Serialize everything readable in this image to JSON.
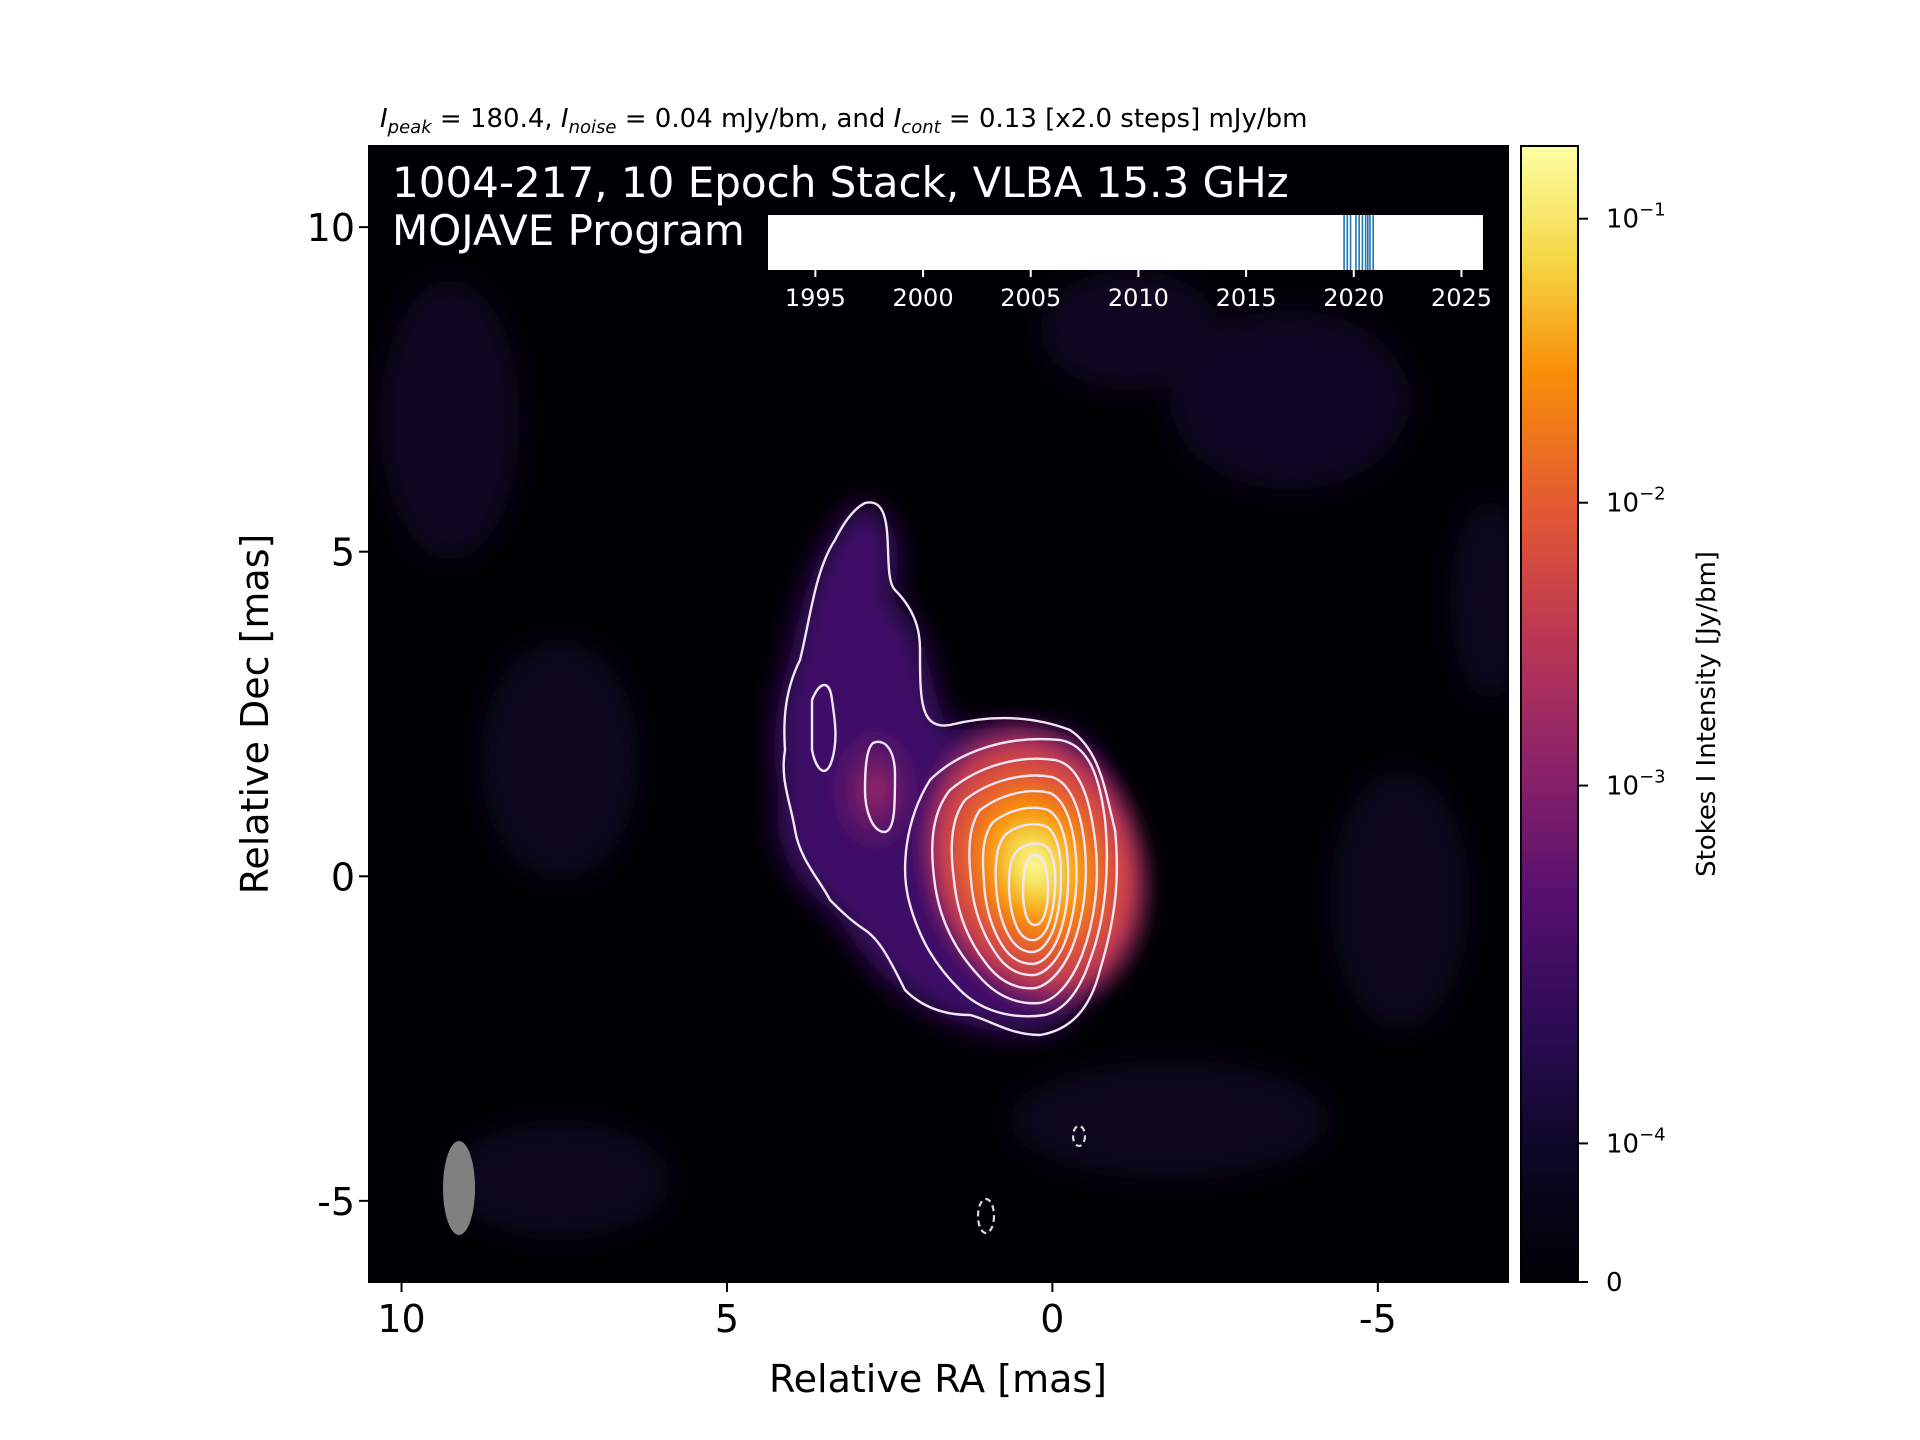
{
  "chart_data": {
    "type": "heatmap",
    "header": {
      "peak_label": "I",
      "peak_sub": "peak",
      "peak_value": " = 180.4, ",
      "noise_label": "I",
      "noise_sub": "noise",
      "noise_value": " = 0.04 mJy/bm, and ",
      "cont_label": "I",
      "cont_sub": "cont",
      "cont_value": " = 0.13 [x2.0 steps] mJy/bm"
    },
    "annotation": {
      "line1": "1004-217, 10 Epoch Stack, VLBA 15.3 GHz",
      "line2": "MOJAVE Program"
    },
    "xlabel": "Relative RA [mas]",
    "ylabel": "Relative Dec [mas]",
    "xlim": [
      10.5,
      -7
    ],
    "ylim": [
      -6.25,
      11.25
    ],
    "xticks": [
      10,
      5,
      0,
      -5
    ],
    "xtick_labels": [
      "10",
      "5",
      "0",
      "-5"
    ],
    "yticks": [
      10,
      5,
      0,
      -5
    ],
    "ytick_labels": [
      "10",
      "5",
      "0",
      "-5"
    ],
    "colormap": "inferno",
    "colorbar": {
      "label": "Stokes I Intensity [Jy/bm]",
      "ticks": [
        {
          "base": "10",
          "exp": "−1",
          "frac": 0.936
        },
        {
          "base": "10",
          "exp": "−2",
          "frac": 0.686
        },
        {
          "base": "10",
          "exp": "−3",
          "frac": 0.437
        },
        {
          "base": "10",
          "exp": "−4",
          "frac": 0.122
        },
        {
          "base": "0",
          "exp": "",
          "frac": 0.0
        }
      ]
    },
    "peak_position": [
      0,
      0
    ],
    "contour_levels_mjy": [
      0.13,
      0.26,
      0.52,
      1.04,
      2.08,
      4.16,
      8.32,
      16.64,
      33.28,
      66.56,
      133.12
    ],
    "negative_contours": [
      {
        "x": -0.45,
        "y": -3.95
      },
      {
        "x": 1.0,
        "y": -5.2
      }
    ],
    "beam": {
      "x": 9.0,
      "y": -4.8,
      "major": 1.45,
      "minor": 0.48
    },
    "epoch_timeline": {
      "xlim": [
        1992.8,
        2026.0
      ],
      "ticks": [
        1995,
        2000,
        2005,
        2010,
        2015,
        2020,
        2025
      ],
      "tick_labels": [
        "1995",
        "2000",
        "2005",
        "2010",
        "2015",
        "2020",
        "2025"
      ],
      "epochs": [
        2019.55,
        2019.7,
        2019.85,
        2020.1,
        2020.25,
        2020.4,
        2020.55,
        2020.65,
        2020.75,
        2020.9
      ],
      "epoch_color": "#1f77b4"
    }
  }
}
